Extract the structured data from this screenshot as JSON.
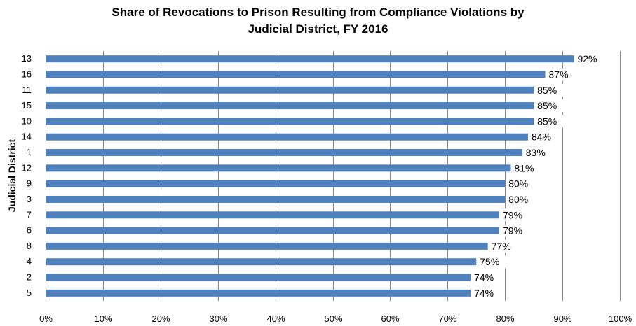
{
  "chart_data": {
    "type": "bar",
    "orientation": "horizontal",
    "title_line1": "Share of Revocations to Prison Resulting from Compliance Violations by",
    "title_line2": "Judicial District, FY 2016",
    "xlabel": "",
    "ylabel": "Judicial District",
    "categories": [
      "13",
      "16",
      "11",
      "15",
      "10",
      "14",
      "1",
      "12",
      "9",
      "3",
      "7",
      "6",
      "8",
      "4",
      "2",
      "5"
    ],
    "values": [
      92,
      87,
      85,
      85,
      85,
      84,
      83,
      81,
      80,
      80,
      79,
      79,
      77,
      75,
      74,
      74
    ],
    "value_labels": [
      "92%",
      "87%",
      "85%",
      "85%",
      "85%",
      "84%",
      "83%",
      "81%",
      "80%",
      "80%",
      "79%",
      "79%",
      "77%",
      "75%",
      "74%",
      "74%"
    ],
    "xlim": [
      0,
      100
    ],
    "x_ticks": [
      "0%",
      "10%",
      "20%",
      "30%",
      "40%",
      "50%",
      "60%",
      "70%",
      "80%",
      "90%",
      "100%"
    ],
    "grid": "vertical",
    "legend": "none",
    "bar_color": "#4f81bd",
    "grid_color": "#868686"
  }
}
